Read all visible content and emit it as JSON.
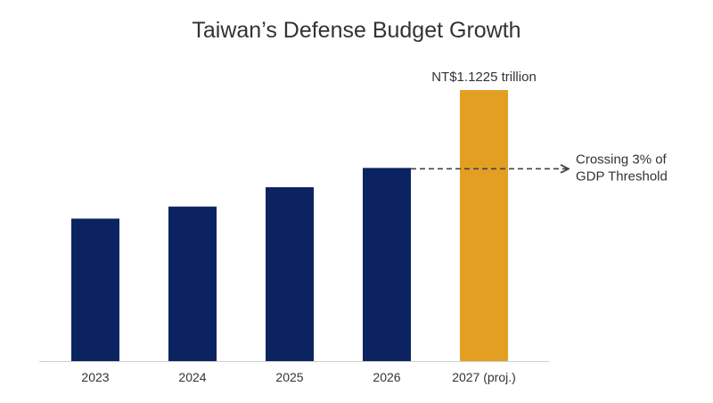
{
  "chart_data": {
    "type": "bar",
    "title": "Taiwan’s Defense Budget Growth",
    "xlabel": "",
    "ylabel": "",
    "categories": [
      "2023",
      "2024",
      "2025",
      "2026",
      "2027 (proj.)"
    ],
    "values": [
      0.59,
      0.64,
      0.72,
      0.8,
      1.1225
    ],
    "ylim": [
      0,
      1.1225
    ],
    "bar_colors": [
      "#0b2461",
      "#0b2461",
      "#0b2461",
      "#0b2461",
      "#e39f22"
    ],
    "data_labels": [
      "",
      "",
      "",
      "",
      "NT$1.1225 trillion"
    ],
    "annotation": {
      "lines": [
        "Crossing 3% of",
        "GDP Threshold"
      ],
      "from_category_index": 3
    },
    "grid": false,
    "legend": "none"
  }
}
